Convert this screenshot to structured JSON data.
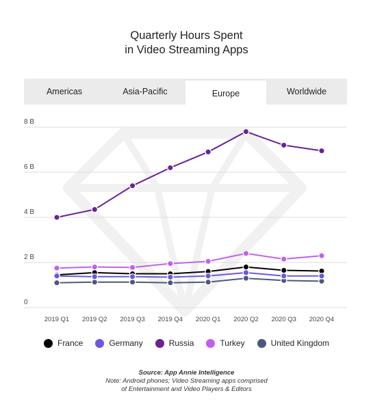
{
  "title_line1": "Quarterly Hours Spent",
  "title_line2": "in Video Streaming Apps",
  "tabs": [
    {
      "label": "Americas",
      "active": false
    },
    {
      "label": "Asia-Pacific",
      "active": false
    },
    {
      "label": "Europe",
      "active": true
    },
    {
      "label": "Worldwide",
      "active": false
    }
  ],
  "chart_data": {
    "type": "line",
    "x": [
      "2019 Q1",
      "2019 Q2",
      "2019 Q3",
      "2019 Q4",
      "2020 Q1",
      "2020 Q2",
      "2020 Q3",
      "2020 Q4"
    ],
    "y_ticks": [
      "0",
      "2 B",
      "4 B",
      "6 B",
      "8 B"
    ],
    "ylim": [
      0,
      8
    ],
    "grid": "horizontal",
    "legend_position": "bottom",
    "series": [
      {
        "name": "United Kingdom",
        "color": "#4a5a78",
        "values": [
          1.1,
          1.13,
          1.13,
          1.1,
          1.13,
          1.3,
          1.2,
          1.17
        ]
      },
      {
        "name": "France",
        "color": "#000000",
        "values": [
          1.45,
          1.55,
          1.5,
          1.5,
          1.6,
          1.8,
          1.65,
          1.62
        ]
      },
      {
        "name": "Germany",
        "color": "#6b57e0",
        "values": [
          1.4,
          1.37,
          1.37,
          1.35,
          1.4,
          1.55,
          1.4,
          1.4
        ]
      },
      {
        "name": "Turkey",
        "color": "#c060f0",
        "values": [
          1.75,
          1.8,
          1.78,
          1.95,
          2.05,
          2.4,
          2.15,
          2.3
        ]
      },
      {
        "name": "Russia",
        "color": "#6a2295",
        "values": [
          4.0,
          4.35,
          5.4,
          6.2,
          6.9,
          7.8,
          7.2,
          6.95
        ]
      }
    ]
  },
  "legend": [
    {
      "name": "France",
      "color": "#000000"
    },
    {
      "name": "Germany",
      "color": "#6b57e0"
    },
    {
      "name": "Russia",
      "color": "#6a2295"
    },
    {
      "name": "Turkey",
      "color": "#c060f0"
    },
    {
      "name": "United Kingdom",
      "color": "#4a5a78"
    }
  ],
  "footer": {
    "source": "Source: App Annie Intelligence",
    "note_line1": "Note: Android phones; Video Streaming apps comprised",
    "note_line2": "of Entertainment and Video Players & Editors"
  }
}
